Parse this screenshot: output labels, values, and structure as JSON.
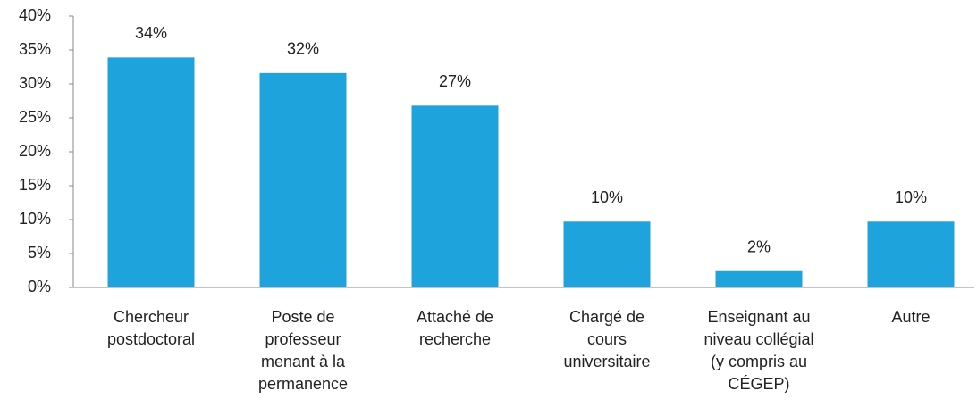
{
  "chart_data": {
    "type": "bar",
    "categories": [
      [
        "Chercheur",
        "postdoctoral"
      ],
      [
        "Poste de",
        "professeur",
        "menant à la",
        "permanence"
      ],
      [
        "Attaché de",
        "recherche"
      ],
      [
        "Chargé de",
        "cours",
        "universitaire"
      ],
      [
        "Enseignant au",
        "niveau collégial",
        "(y compris au",
        "CÉGEP)"
      ],
      [
        "Autre"
      ]
    ],
    "values": [
      33.9,
      31.6,
      26.8,
      9.7,
      2.4,
      9.7
    ],
    "value_labels": [
      "34%",
      "32%",
      "27%",
      "10%",
      "2%",
      "10%"
    ],
    "color": "#1fa3dd",
    "ylim": [
      0,
      40
    ],
    "yticks": [
      {
        "value": 0,
        "label": "0%"
      },
      {
        "value": 5,
        "label": "5%"
      },
      {
        "value": 10,
        "label": "10%"
      },
      {
        "value": 15,
        "label": "15%"
      },
      {
        "value": 20,
        "label": "20%"
      },
      {
        "value": 25,
        "label": "25%"
      },
      {
        "value": 30,
        "label": "30%"
      },
      {
        "value": 35,
        "label": "35%"
      },
      {
        "value": 40,
        "label": "40%"
      }
    ],
    "grid": false
  }
}
